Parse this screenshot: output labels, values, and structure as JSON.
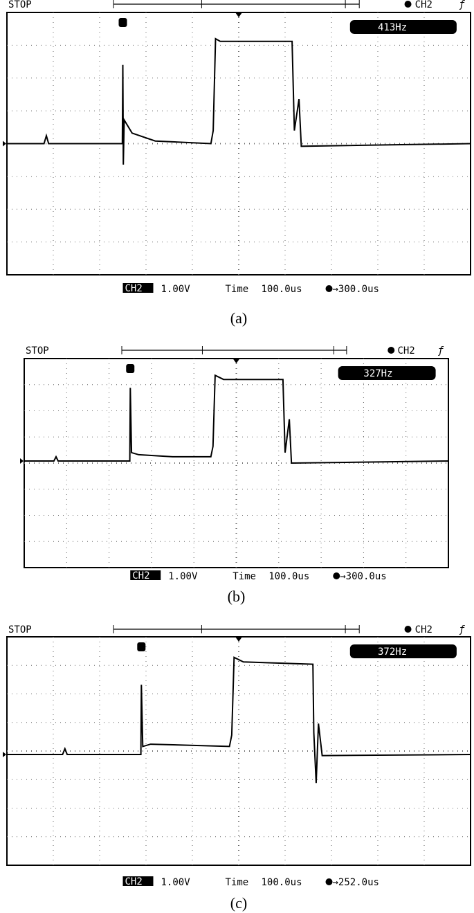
{
  "panels": [
    {
      "status": "STOP",
      "channel": "CH2",
      "frequency": "413Hz",
      "badge": "CH2",
      "volts": "1.00V",
      "time_label": "Time",
      "time_div": "100.0us",
      "trigger": "→300.0us",
      "caption": "(a)"
    },
    {
      "status": "STOP",
      "channel": "CH2",
      "frequency": "327Hz",
      "badge": "CH2",
      "volts": "1.00V",
      "time_label": "Time",
      "time_div": "100.0us",
      "trigger": "→300.0us",
      "caption": "(b)"
    },
    {
      "status": "STOP",
      "channel": "CH2",
      "frequency": "372Hz",
      "badge": "CH2",
      "volts": "1.00V",
      "time_label": "Time",
      "time_div": "100.0us",
      "trigger": "→252.0us",
      "caption": "(c)"
    }
  ]
}
